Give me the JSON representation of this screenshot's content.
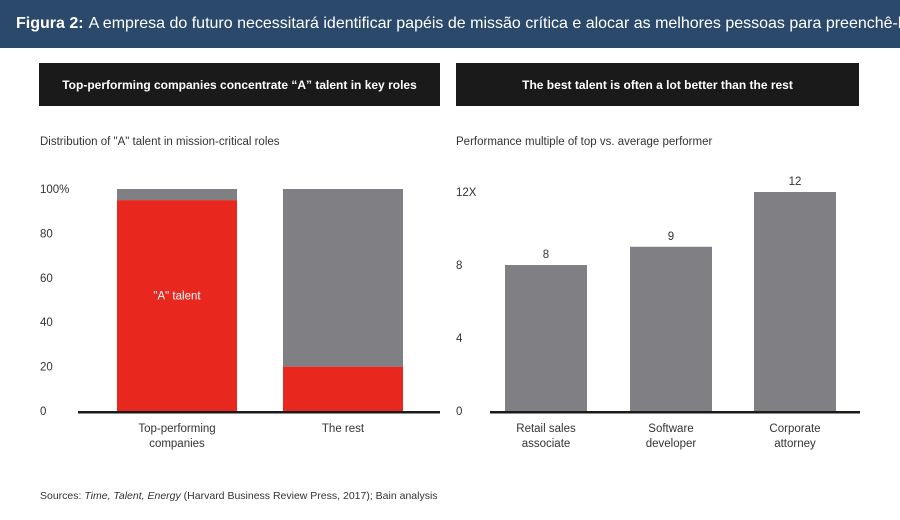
{
  "header": {
    "label": "Figura 2:",
    "text": "A empresa do futuro necessitará identificar papéis de missão crítica e alocar as melhores pessoas para preenchê-los"
  },
  "colors": {
    "header_bg": "#2b4a6b",
    "panel_bar": "#1a1a1a",
    "red": "#e8281f",
    "gray": "#808084"
  },
  "source": {
    "prefix": "Sources: ",
    "italic": "Time, Talent, Energy",
    "suffix": " (Harvard Business Review Press, 2017); Bain analysis"
  },
  "chart_data": [
    {
      "type": "bar",
      "stacked": true,
      "banner": "Top-performing companies concentrate “A” talent in key roles",
      "title": "Distribution of \"A\" talent in mission-critical roles",
      "categories": [
        "Top-performing companies",
        "The rest"
      ],
      "category_lines": [
        [
          "Top-performing",
          "companies"
        ],
        [
          "The rest"
        ]
      ],
      "series": [
        {
          "name": "\"A\" talent",
          "color": "#e8281f",
          "values": [
            95,
            20
          ]
        },
        {
          "name": "",
          "color": "#808084",
          "values": [
            5,
            80
          ]
        }
      ],
      "ylim": [
        0,
        100
      ],
      "yticks": [
        0,
        20,
        40,
        60,
        80,
        100
      ],
      "ytick_labels": [
        "0",
        "20",
        "40",
        "60",
        "80",
        "100%"
      ]
    },
    {
      "type": "bar",
      "banner": "The best talent is often a lot better than the rest",
      "title": "Performance multiple of top vs. average performer",
      "categories": [
        "Retail sales associate",
        "Software developer",
        "Corporate attorney"
      ],
      "category_lines": [
        [
          "Retail sales",
          "associate"
        ],
        [
          "Software",
          "developer"
        ],
        [
          "Corporate",
          "attorney"
        ]
      ],
      "values": [
        8,
        9,
        12
      ],
      "data_labels": [
        "8",
        "9",
        "12"
      ],
      "color": "#808084",
      "ylim": [
        0,
        12
      ],
      "yticks": [
        0,
        4,
        8,
        12
      ],
      "ytick_labels": [
        "0",
        "4",
        "8",
        "12X"
      ]
    }
  ]
}
